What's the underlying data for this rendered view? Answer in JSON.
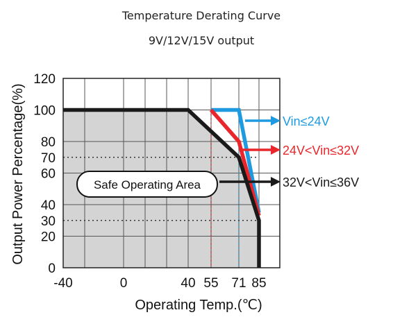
{
  "chart_data": {
    "type": "line",
    "title": "Temperature Derating Curve",
    "subtitle": "9V/12V/15V output",
    "xlabel": "Operating Temp.(℃)",
    "ylabel": "Output Power Percentage(%)",
    "xlim": [
      -40,
      85
    ],
    "ylim": [
      0,
      120
    ],
    "x_ticks": [
      -40,
      0,
      40,
      55,
      71,
      85
    ],
    "x_tick_labels": [
      "-40",
      "0",
      "40",
      "55",
      "71",
      "85"
    ],
    "y_ticks": [
      0,
      20,
      30,
      40,
      60,
      70,
      80,
      100,
      120
    ],
    "y_tick_labels": [
      "0",
      "20",
      "30",
      "40",
      "60",
      "70",
      "80",
      "100",
      "120"
    ],
    "grid": true,
    "series": [
      {
        "name": "Vin≤24V",
        "color": "#1e9be0",
        "points": [
          [
            55,
            100
          ],
          [
            71,
            100
          ],
          [
            85,
            35
          ]
        ]
      },
      {
        "name": "24V<Vin≤32V",
        "color": "#e8262b",
        "points": [
          [
            55,
            100
          ],
          [
            71,
            80
          ],
          [
            85,
            33
          ]
        ]
      },
      {
        "name": "32V<Vin≤36V",
        "color": "#1a1a1a",
        "points": [
          [
            -40,
            100
          ],
          [
            40,
            100
          ],
          [
            71,
            70
          ],
          [
            85,
            30
          ],
          [
            85,
            0
          ]
        ]
      }
    ],
    "reference_lines": [
      {
        "axis": "x",
        "value": 55,
        "color": "#e8262b"
      },
      {
        "axis": "x",
        "value": 71,
        "color": "#1e9be0"
      },
      {
        "axis": "y",
        "value": 70,
        "color": "#333333"
      },
      {
        "axis": "y",
        "value": 30,
        "color": "#333333"
      }
    ],
    "annotation": "Safe Operating Area",
    "shade_color": "#d4d4d4"
  }
}
